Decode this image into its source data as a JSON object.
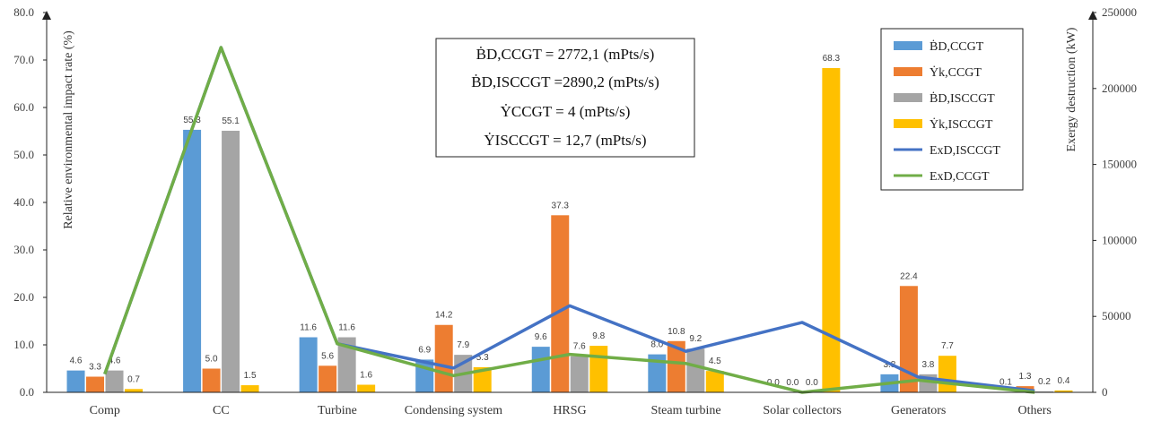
{
  "chart_data": {
    "type": "bar",
    "categories": [
      "Comp",
      "CC",
      "Turbine",
      "Condensing system",
      "HRSG",
      "Steam turbine",
      "Solar collectors",
      "Generators",
      "Others"
    ],
    "series": [
      {
        "name": "ḂD,CCGT",
        "color": "#5B9BD5",
        "values": [
          4.6,
          55.3,
          11.6,
          6.9,
          9.6,
          8.0,
          0.0,
          3.8,
          0.1
        ]
      },
      {
        "name": "Ẏk,CCGT",
        "color": "#ED7D31",
        "values": [
          3.3,
          5.0,
          5.6,
          14.2,
          37.3,
          10.8,
          0.0,
          22.4,
          1.3
        ]
      },
      {
        "name": "ḂD,ISCCGT",
        "color": "#A5A5A5",
        "values": [
          4.6,
          55.1,
          11.6,
          7.9,
          7.6,
          9.2,
          0.0,
          3.8,
          0.2
        ]
      },
      {
        "name": "Ẏk,ISCCGT",
        "color": "#FFC000",
        "values": [
          0.7,
          1.5,
          1.6,
          5.3,
          9.8,
          4.5,
          68.3,
          7.7,
          0.4
        ]
      }
    ],
    "data_labels": [
      [
        "4.6",
        "55.3",
        "11.6",
        "6.9",
        "9.6",
        "8.0",
        "0.0",
        "3.8",
        "0.1"
      ],
      [
        "3.3",
        "5.0",
        "5.6",
        "14.2",
        "37.3",
        "10.8",
        "0.0",
        "22.4",
        "1.3"
      ],
      [
        "4.6",
        "55.1",
        "11.6",
        "7.9",
        "7.6",
        "9.2",
        "0.0",
        "3.8",
        "0.2"
      ],
      [
        "0.7",
        "1.5",
        "1.6",
        "5.3",
        "9.8",
        "4.5",
        "68.3",
        "7.7",
        "0.4"
      ]
    ],
    "line_series": [
      {
        "name": "ExD,ISCCGT",
        "color": "#4472C4",
        "values": [
          12000,
          227000,
          32000,
          16000,
          57000,
          27000,
          46000,
          10000,
          1000
        ]
      },
      {
        "name": "ExD,CCGT",
        "color": "#70AD47",
        "values": [
          12000,
          227000,
          32000,
          11000,
          25000,
          19000,
          0,
          8000,
          0
        ]
      }
    ],
    "ylabel": "Relative environmental impact rate (%)",
    "ylim": [
      0,
      80
    ],
    "yticks": [
      "0.0",
      "10.0",
      "20.0",
      "30.0",
      "40.0",
      "50.0",
      "60.0",
      "70.0",
      "80.0"
    ],
    "y2label": "Exergy destruction (kW)",
    "y2lim": [
      0,
      250000
    ],
    "y2ticks": [
      "0",
      "50000",
      "100000",
      "150000",
      "200000",
      "250000"
    ],
    "annotation_lines": [
      "ḂD,CCGT  = 2772,1  (mPts/s)",
      "ḂD,ISCCGT  =2890,2  (mPts/s)",
      "ẎCCGT  = 4  (mPts/s)",
      "ẎISCCGT  = 12,7  (mPts/s)"
    ],
    "legend_position": "top-right",
    "grid": false
  }
}
